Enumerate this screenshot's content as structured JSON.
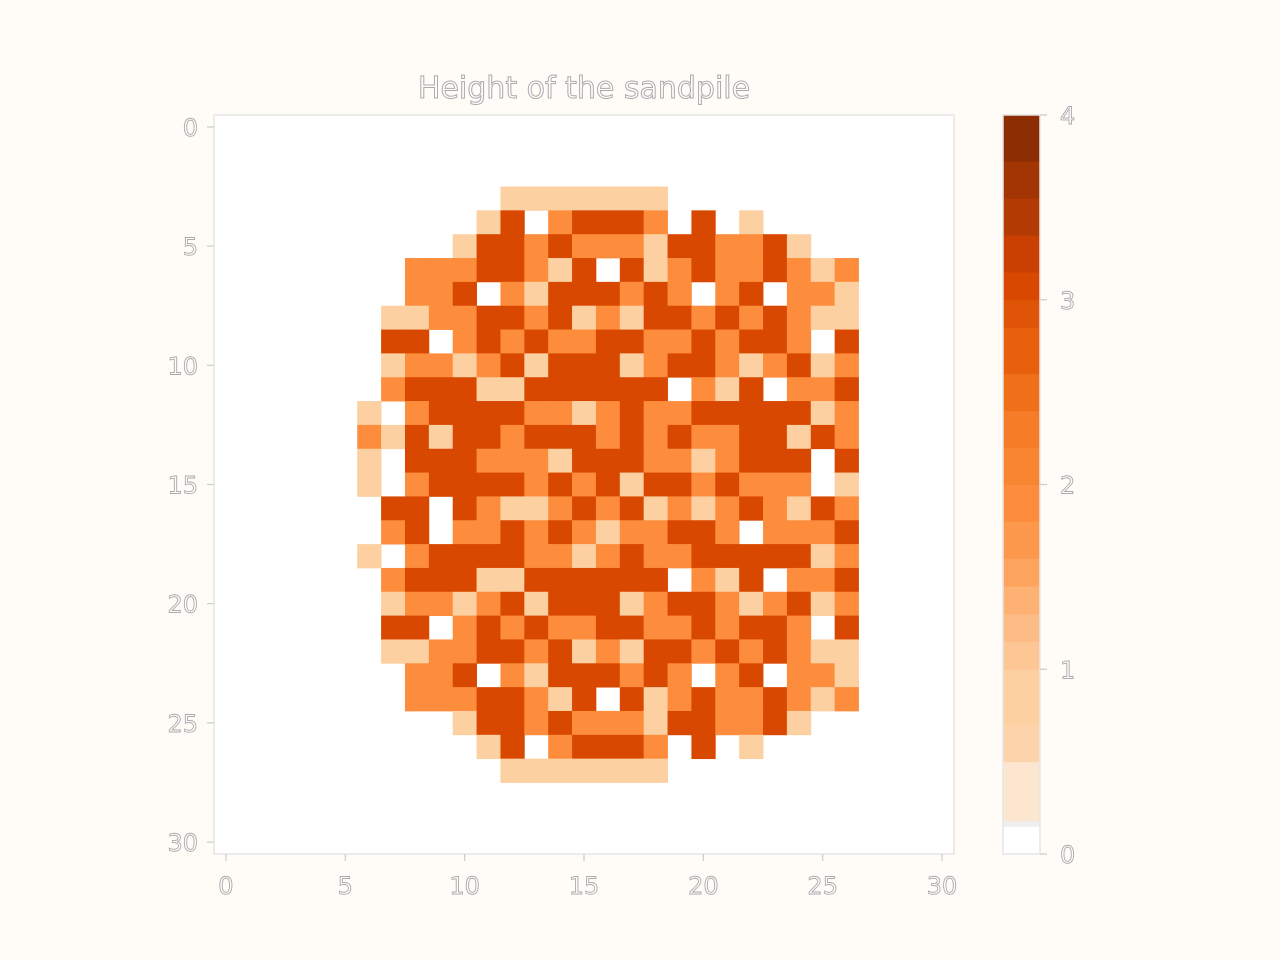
{
  "chart_data": {
    "type": "heatmap",
    "title": "Height of the sandpile",
    "xlabel": "",
    "ylabel": "",
    "x_ticks": [
      "0",
      "5",
      "10",
      "15",
      "20",
      "25",
      "30"
    ],
    "y_ticks": [
      "0",
      "5",
      "10",
      "15",
      "20",
      "25",
      "30"
    ],
    "colorbar_ticks": [
      "0",
      "1",
      "2",
      "3",
      "4"
    ],
    "colorbar_range": [
      0,
      4
    ],
    "colormap": "Oranges",
    "grid": false,
    "legend": "colorbar-right",
    "row_index_start": 3,
    "col_index_start": 3,
    "rows": [
      "000000000111111100000000",
      "000000001302333203010000",
      "000000013323222133223100",
      "000002223321303123223212",
      "000002230213332320230221",
      "000011223323121332323211",
      "000033023232233223233203",
      "000012212313331233212312",
      "000023331133333302130223",
      "000102333322123223333312",
      "000213133233323232233132",
      "000103332221333221233303",
      "000102333323231332322201",
      "000033032112323121232132",
      "000023022323212233202223",
      "000102333322123223333312",
      "000023331133333302130223",
      "000012212313331233212312",
      "000033023232233223233203",
      "000011223323121332323211",
      "000002230213332320230221",
      "000002223321303123223212",
      "000000013323222133223100",
      "000000001302333203010000",
      "000000000111111100000000"
    ]
  }
}
